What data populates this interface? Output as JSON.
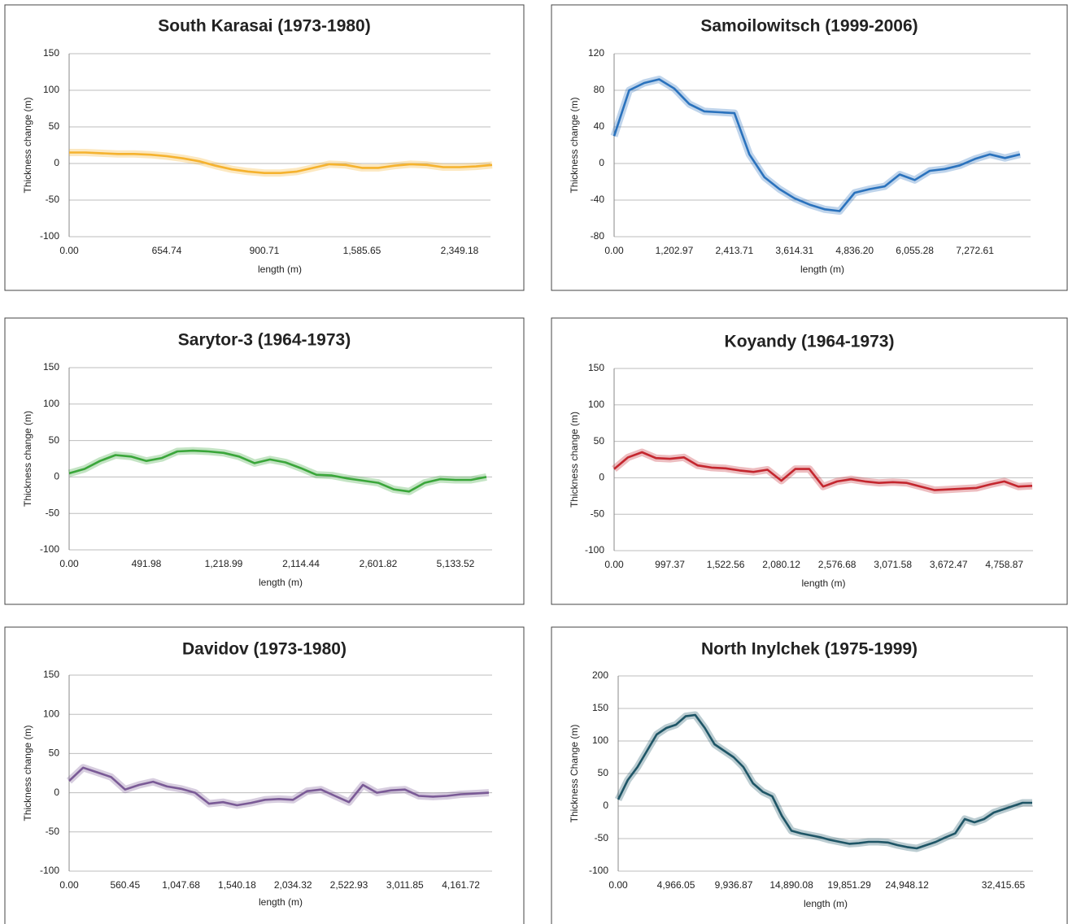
{
  "chart_data": [
    {
      "type": "line",
      "title": "South Karasai (1973-1980)",
      "xlabel": "length (m)",
      "ylabel": "Thickness change (m)",
      "color": "#f5b22e",
      "grid": true,
      "categories": [
        "0.00",
        null,
        null,
        null,
        null,
        null,
        "654.74",
        null,
        null,
        null,
        null,
        null,
        "900.71",
        null,
        null,
        null,
        null,
        null,
        "1,585.65",
        null,
        null,
        null,
        null,
        null,
        "2,349.18",
        null,
        null
      ],
      "values": [
        15,
        15,
        14,
        13,
        13,
        12,
        10,
        7,
        3,
        -3,
        -8,
        -11,
        -13,
        -13,
        -11,
        -6,
        -1,
        -2,
        -6,
        -6,
        -3,
        -1,
        -2,
        -5,
        -5,
        -4,
        -2
      ],
      "ylim": [
        -100,
        150
      ],
      "yticks": [
        -100,
        -50,
        0,
        50,
        100,
        150
      ]
    },
    {
      "type": "line",
      "title": "Samoilowitsch (1999-2006)",
      "xlabel": "length (m)",
      "ylabel": "Thickness change (m)",
      "color": "#2a72bd",
      "grid": true,
      "categories": [
        "0.00",
        null,
        null,
        null,
        "1,202.97",
        null,
        null,
        null,
        "2,413.71",
        null,
        null,
        null,
        "3,614.31",
        null,
        null,
        null,
        "4,836.20",
        null,
        null,
        null,
        "6,055.28",
        null,
        null,
        null,
        "7,272.61",
        null,
        null,
        null
      ],
      "values": [
        30,
        80,
        88,
        92,
        82,
        65,
        57,
        56,
        55,
        10,
        -15,
        -28,
        -38,
        -45,
        -50,
        -52,
        -32,
        -28,
        -25,
        -12,
        -18,
        -8,
        -6,
        -2,
        5,
        10,
        6,
        10
      ],
      "ylim": [
        -80,
        120
      ],
      "yticks": [
        -80,
        -40,
        0,
        40,
        80,
        120
      ]
    },
    {
      "type": "line",
      "title": "Sarytor-3 (1964-1973)",
      "xlabel": "length (m)",
      "ylabel": "Thickness change (m)",
      "color": "#3aa63a",
      "grid": true,
      "categories": [
        "0.00",
        null,
        null,
        null,
        null,
        "491.98",
        null,
        null,
        null,
        null,
        "1,218.99",
        null,
        null,
        null,
        null,
        "2,114.44",
        null,
        null,
        null,
        null,
        "2,601.82",
        null,
        null,
        null,
        null,
        "5,133.52",
        null,
        null
      ],
      "values": [
        5,
        11,
        22,
        30,
        28,
        22,
        26,
        35,
        36,
        35,
        33,
        28,
        19,
        24,
        20,
        12,
        3,
        2,
        -2,
        -5,
        -8,
        -17,
        -20,
        -8,
        -3,
        -4,
        -4,
        0
      ],
      "ylim": [
        -100,
        150
      ],
      "yticks": [
        -100,
        -50,
        0,
        50,
        100,
        150
      ]
    },
    {
      "type": "line",
      "title": "Koyandy (1964-1973)",
      "xlabel": "length (m)",
      "ylabel": "Thickness change (m)",
      "color": "#c4262e",
      "grid": true,
      "categories": [
        "0.00",
        null,
        null,
        null,
        "997.37",
        null,
        null,
        null,
        "1,522.56",
        null,
        null,
        null,
        "2,080.12",
        null,
        null,
        null,
        "2,576.68",
        null,
        null,
        null,
        "3,071.58",
        null,
        null,
        null,
        "3,672.47",
        null,
        null,
        null,
        "4,758.87",
        null,
        null
      ],
      "values": [
        12,
        28,
        35,
        27,
        26,
        28,
        17,
        14,
        13,
        10,
        8,
        11,
        -4,
        12,
        12,
        -12,
        -5,
        -2,
        -5,
        -7,
        -6,
        -7,
        -12,
        -17,
        -16,
        -15,
        -14,
        -9,
        -5,
        -12,
        -11
      ],
      "ylim": [
        -100,
        150
      ],
      "yticks": [
        -100,
        -50,
        0,
        50,
        100,
        150
      ]
    },
    {
      "type": "line",
      "title": "Davidov (1973-1980)",
      "xlabel": "length (m)",
      "ylabel": "Thickness change (m)",
      "color": "#7a5a96",
      "grid": true,
      "categories": [
        "0.00",
        null,
        null,
        null,
        "560.45",
        null,
        null,
        null,
        "1,047.68",
        null,
        null,
        null,
        "1,540.18",
        null,
        null,
        null,
        "2,034.32",
        null,
        null,
        null,
        "2,522.93",
        null,
        null,
        null,
        "3,011.85",
        null,
        null,
        null,
        "4,161.72",
        null,
        null
      ],
      "values": [
        15,
        32,
        26,
        20,
        4,
        10,
        14,
        8,
        5,
        0,
        -14,
        -12,
        -16,
        -13,
        -9,
        -8,
        -9,
        2,
        4,
        -4,
        -12,
        10,
        0,
        3,
        4,
        -4,
        -5,
        -4,
        -2,
        -1,
        0
      ],
      "ylim": [
        -100,
        150
      ],
      "yticks": [
        -100,
        -50,
        0,
        50,
        100,
        150
      ]
    },
    {
      "type": "line",
      "title": "North Inylchek (1975-1999)",
      "xlabel": "length  (m)",
      "ylabel": "Thickness Change (m)",
      "color": "#1e5566",
      "grid": true,
      "categories": [
        "0.00",
        null,
        null,
        null,
        null,
        null,
        "4,966.05",
        null,
        null,
        null,
        null,
        null,
        "9,936.87",
        null,
        null,
        null,
        null,
        null,
        "14,890.08",
        null,
        null,
        null,
        null,
        null,
        "19,851.29",
        null,
        null,
        null,
        null,
        null,
        "24,948.12",
        null,
        null,
        null,
        null,
        null,
        null,
        null,
        null,
        null,
        "32,415.65",
        null,
        null,
        null
      ],
      "values": [
        10,
        40,
        60,
        85,
        110,
        120,
        125,
        138,
        140,
        120,
        95,
        85,
        75,
        60,
        35,
        22,
        15,
        -15,
        -38,
        -42,
        -45,
        -48,
        -52,
        -55,
        -58,
        -57,
        -55,
        -55,
        -56,
        -60,
        -63,
        -65,
        -60,
        -55,
        -48,
        -42,
        -20,
        -25,
        -20,
        -10,
        -5,
        0,
        5,
        5
      ],
      "ylim": [
        -100,
        200
      ],
      "yticks": [
        -100,
        -50,
        0,
        50,
        100,
        150,
        200
      ]
    }
  ]
}
